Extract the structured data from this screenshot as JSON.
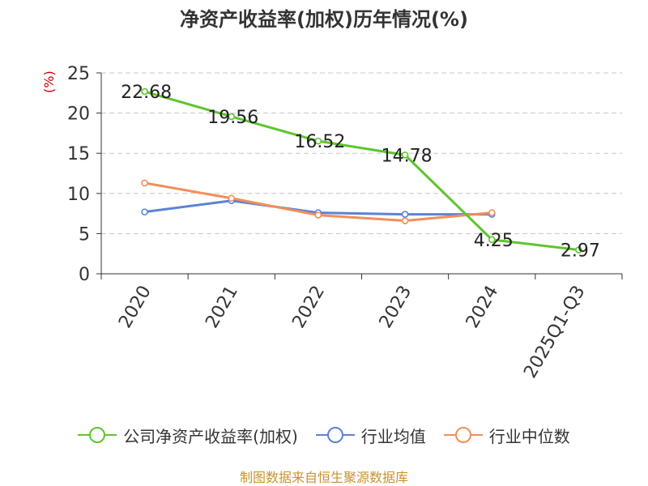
{
  "title": "净资产收益率(加权)历年情况(%)",
  "unit_label": "(%)",
  "source": "制图数据来自恒生聚源数据库",
  "chart_data": {
    "type": "line",
    "categories": [
      "2020",
      "2021",
      "2022",
      "2023",
      "2024",
      "2025Q1-Q3"
    ],
    "ylim": [
      0,
      25
    ],
    "yticks": [
      0,
      5,
      10,
      15,
      20,
      25
    ],
    "grid": true,
    "legend_position": "bottom",
    "series": [
      {
        "name": "公司净资产收益率(加权)",
        "color": "#5ec52d",
        "values": [
          22.68,
          19.56,
          16.52,
          14.78,
          4.25,
          2.97
        ],
        "labels": [
          "22.68",
          "19.56",
          "16.52",
          "14.78",
          "4.25",
          "2.97"
        ]
      },
      {
        "name": "行业均值",
        "color": "#5b83d6",
        "values": [
          7.7,
          9.1,
          7.6,
          7.4,
          7.4,
          null
        ]
      },
      {
        "name": "行业中位数",
        "color": "#f28e5a",
        "values": [
          11.3,
          9.4,
          7.3,
          6.6,
          7.6,
          null
        ]
      }
    ]
  }
}
